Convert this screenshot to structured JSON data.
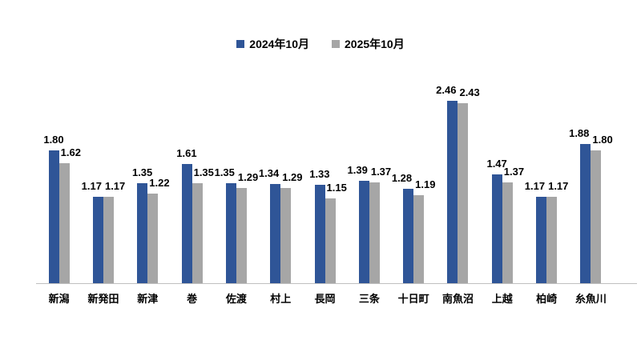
{
  "chart_data": {
    "type": "bar",
    "categories": [
      "新潟",
      "新発田",
      "新津",
      "巻",
      "佐渡",
      "村上",
      "長岡",
      "三条",
      "十日町",
      "南魚沼",
      "上越",
      "柏崎",
      "糸魚川"
    ],
    "series": [
      {
        "name": "2024年10月",
        "color": "#2F5597",
        "values": [
          1.8,
          1.17,
          1.35,
          1.61,
          1.35,
          1.34,
          1.33,
          1.39,
          1.28,
          2.46,
          1.47,
          1.17,
          1.88
        ]
      },
      {
        "name": "2025年10月",
        "color": "#A6A6A6",
        "values": [
          1.62,
          1.17,
          1.22,
          1.35,
          1.29,
          1.29,
          1.15,
          1.37,
          1.19,
          2.43,
          1.37,
          1.17,
          1.8
        ]
      }
    ],
    "title": "",
    "xlabel": "",
    "ylabel": "",
    "ylim": [
      0,
      2.8
    ],
    "grid": false,
    "legend_position": "top-center",
    "value_labels": "outside-end",
    "value_format": "0.00",
    "axis_line_color": "#BFBFBF",
    "label_color": "#000000"
  }
}
